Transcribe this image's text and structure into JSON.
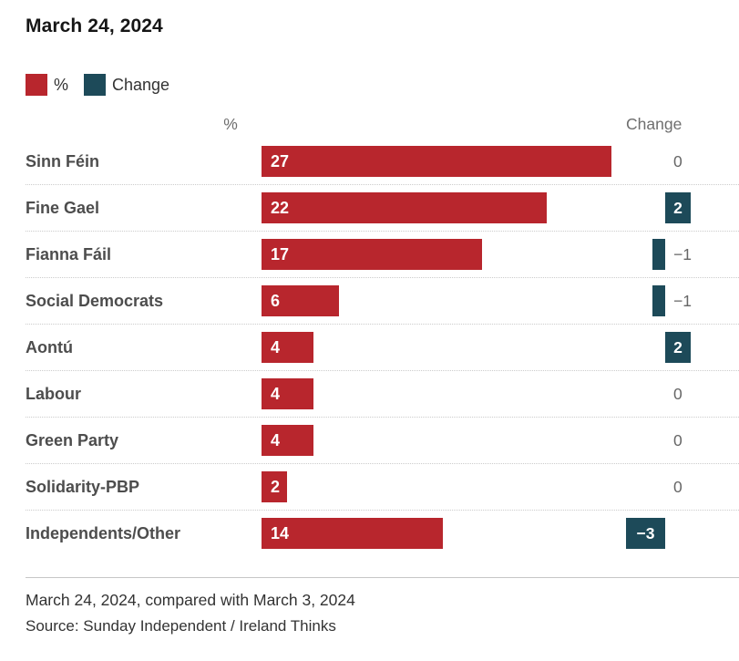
{
  "title": "March 24, 2024",
  "legend": {
    "percent_label": "%",
    "change_label": "Change"
  },
  "column_headers": {
    "percent": "%",
    "change": "Change"
  },
  "colors": {
    "percent_bar": "#b8262d",
    "change_bar": "#1d4a59",
    "grid_line": "#cccccc",
    "footer_rule": "#c6c6c6",
    "label_gray": "#666666"
  },
  "chart_data": {
    "type": "bar",
    "orientation": "horizontal",
    "title": "March 24, 2024",
    "categories": [
      "Sinn Féin",
      "Fine Gael",
      "Fianna Fáil",
      "Social Democrats",
      "Aontú",
      "Labour",
      "Green Party",
      "Solidarity-PBP",
      "Independents/Other"
    ],
    "series": [
      {
        "name": "%",
        "values": [
          27,
          22,
          17,
          6,
          4,
          4,
          4,
          2,
          14
        ]
      },
      {
        "name": "Change",
        "values": [
          0,
          2,
          -1,
          -1,
          2,
          0,
          0,
          0,
          -3
        ]
      }
    ],
    "rows": [
      {
        "party": "Sinn Féin",
        "percent": 27,
        "change": 0,
        "percent_label": "27",
        "change_label": "0"
      },
      {
        "party": "Fine Gael",
        "percent": 22,
        "change": 2,
        "percent_label": "22",
        "change_label": "2"
      },
      {
        "party": "Fianna Fáil",
        "percent": 17,
        "change": -1,
        "percent_label": "17",
        "change_label": "−1"
      },
      {
        "party": "Social Democrats",
        "percent": 6,
        "change": -1,
        "percent_label": "6",
        "change_label": "−1"
      },
      {
        "party": "Aontú",
        "percent": 4,
        "change": 2,
        "percent_label": "4",
        "change_label": "2"
      },
      {
        "party": "Labour",
        "percent": 4,
        "change": 0,
        "percent_label": "4",
        "change_label": "0"
      },
      {
        "party": "Green Party",
        "percent": 4,
        "change": 0,
        "percent_label": "4",
        "change_label": "0"
      },
      {
        "party": "Solidarity-PBP",
        "percent": 2,
        "change": 0,
        "percent_label": "2",
        "change_label": "0"
      },
      {
        "party": "Independents/Other",
        "percent": 14,
        "change": -3,
        "percent_label": "14",
        "change_label": "−3"
      }
    ],
    "value_labels": "inside bars, white; small change values outside in gray",
    "grid": "dotted row separators",
    "legend_position": "top-left",
    "xlim": [
      0,
      27
    ]
  },
  "footer": {
    "note": "March 24, 2024, compared with March 3, 2024",
    "source": "Source: Sunday Independent / Ireland Thinks"
  }
}
